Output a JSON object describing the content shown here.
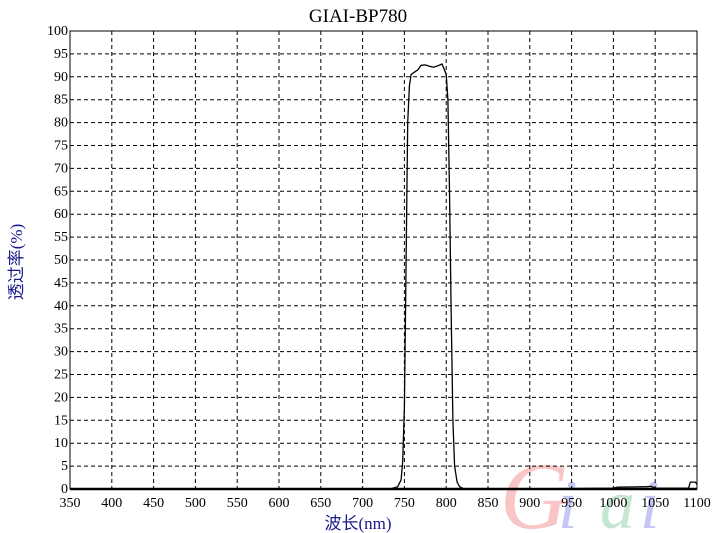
{
  "chart_data": {
    "type": "line",
    "title": "GIAI-BP780",
    "xlabel": "波长(nm)",
    "ylabel": "透过率(%)",
    "xlim": [
      350,
      1100
    ],
    "ylim": [
      0,
      100
    ],
    "xticks": [
      350,
      400,
      450,
      500,
      550,
      600,
      650,
      700,
      750,
      800,
      850,
      900,
      950,
      1000,
      1050,
      1100
    ],
    "yticks": [
      0,
      5,
      10,
      15,
      20,
      25,
      30,
      35,
      40,
      45,
      50,
      55,
      60,
      65,
      70,
      75,
      80,
      85,
      90,
      95,
      100
    ],
    "grid": true,
    "series": [
      {
        "x": [
          350,
          700,
          735,
          742,
          746,
          748,
          750,
          752,
          754,
          756,
          758,
          762,
          766,
          770,
          775,
          780,
          785,
          790,
          795,
          798,
          800,
          802,
          804,
          806,
          808,
          810,
          813,
          816,
          820,
          830,
          880,
          1000,
          1005,
          1040,
          1045,
          1050,
          1090,
          1092,
          1098,
          1100
        ],
        "y": [
          0,
          0,
          0.1,
          0.5,
          2,
          6,
          18,
          50,
          80,
          88,
          90.5,
          91,
          91.5,
          92.5,
          92.6,
          92.3,
          92.1,
          92.4,
          92.8,
          91.5,
          90.5,
          85,
          65,
          38,
          15,
          5,
          1.5,
          0.5,
          0.1,
          0,
          0,
          0.2,
          0.4,
          0.5,
          0.6,
          0.2,
          0.2,
          1.5,
          1.5,
          1
        ]
      }
    ],
    "color": "#000000"
  },
  "watermark": {
    "text": "Giai",
    "colors": [
      "#f08080",
      "#8080e8",
      "#80c8a0",
      "#8080e8"
    ]
  }
}
